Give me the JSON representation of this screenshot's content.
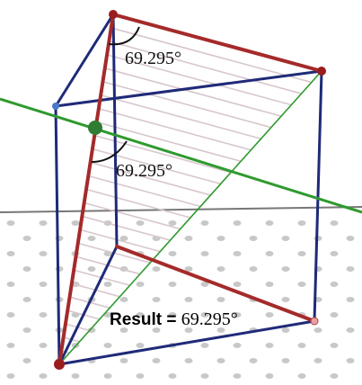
{
  "canvas": {
    "background": "#ffffff"
  },
  "colors": {
    "cube_edges": "#1f2a78",
    "triangle_edges": "#a52a2a",
    "hatching": "#d7c7cc",
    "diagonal_line": "#2e9a2e",
    "green_line": "#2e9a2e",
    "ground_dots": "#c8c8c8",
    "horizon": "#777777",
    "points": "#9b1c1c",
    "green_point": "#2e7d32",
    "blue_point": "#4a78c8"
  },
  "labels": {
    "angle_top": "69.295°",
    "angle_middle": "69.295°",
    "result_label": "Result = ",
    "result_value": "69.295°"
  }
}
